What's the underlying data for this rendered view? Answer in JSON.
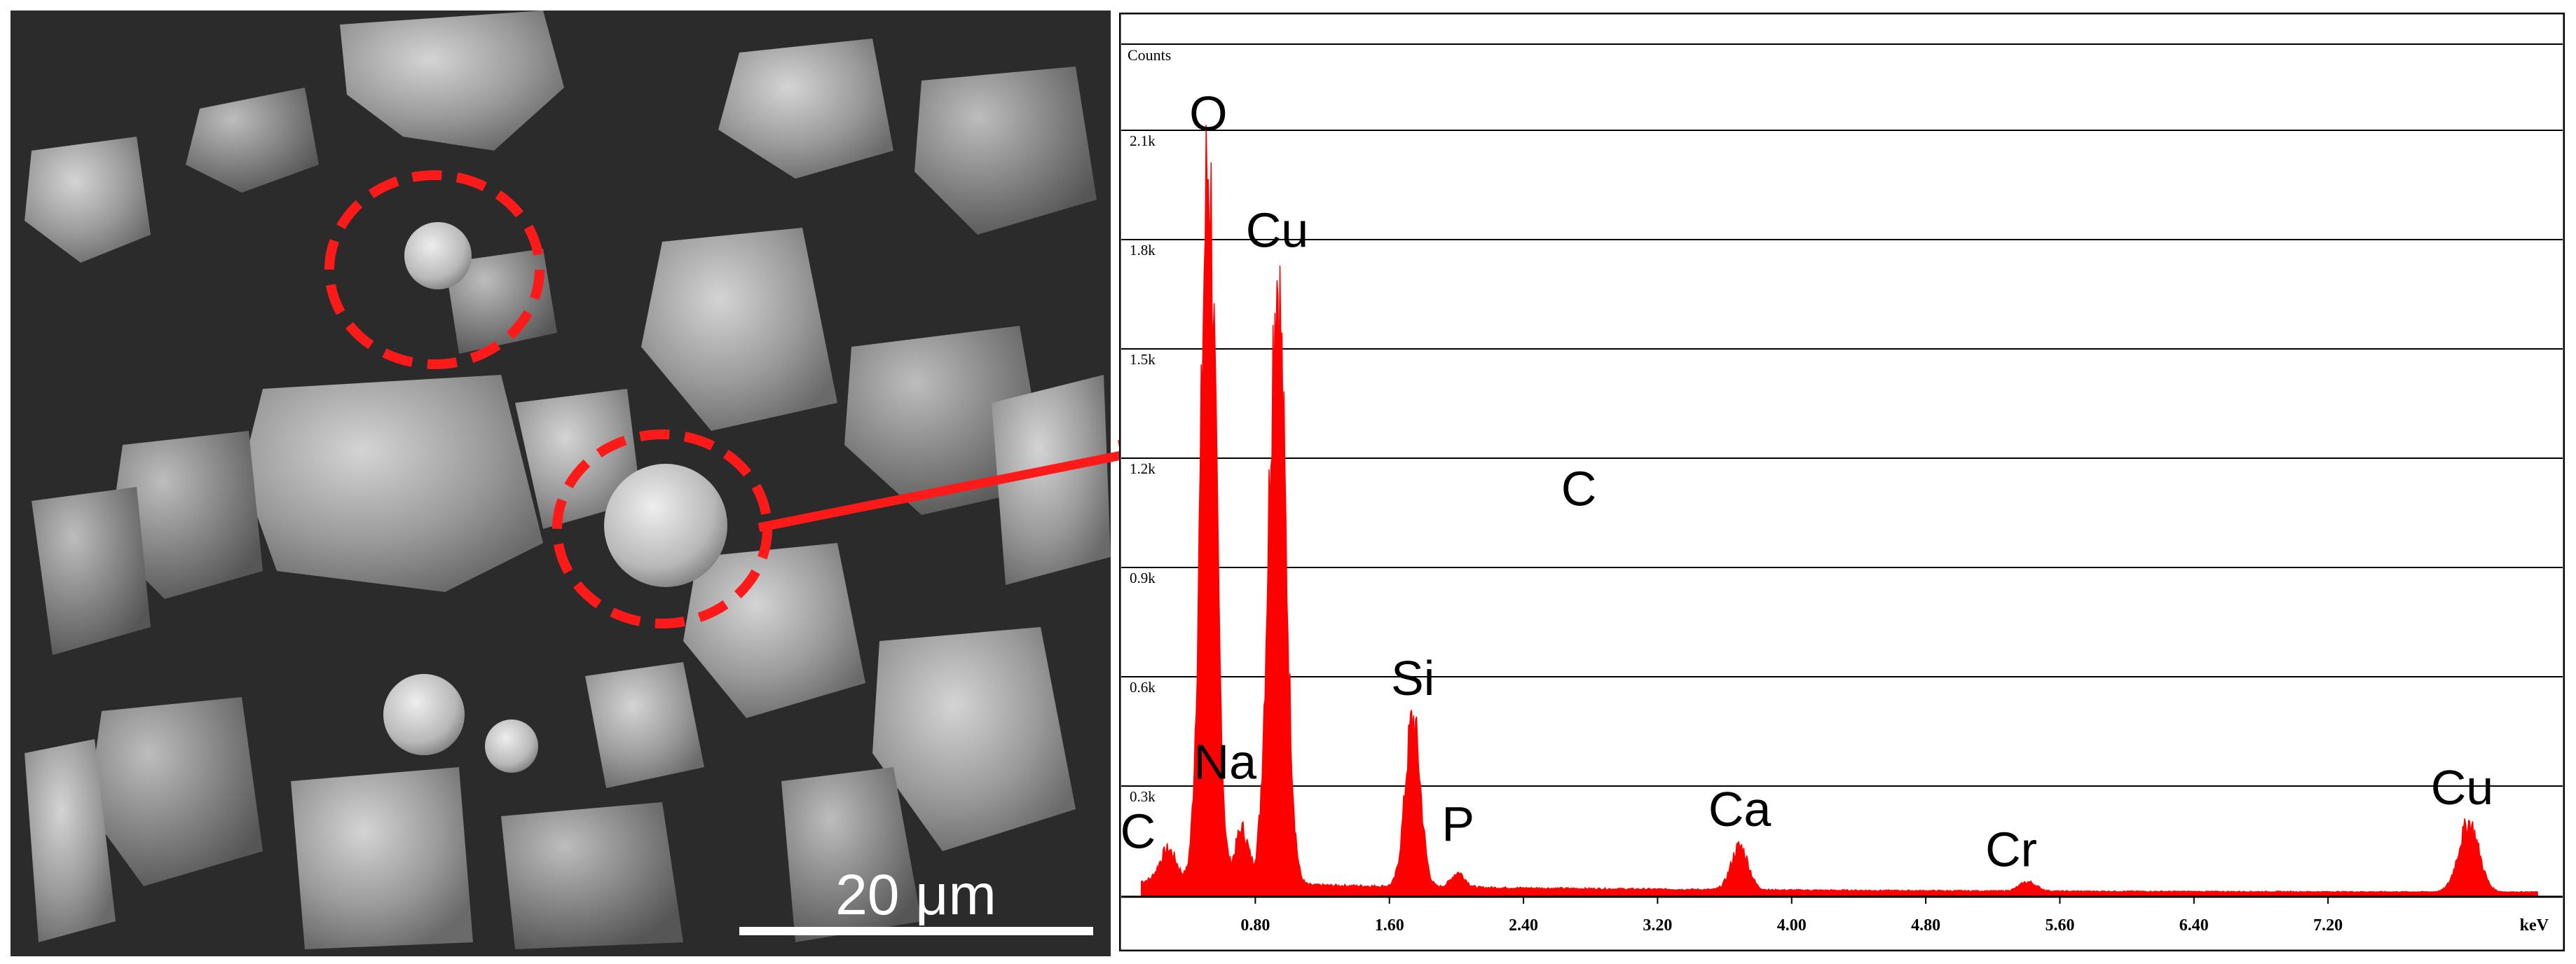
{
  "sem_panel": {
    "scale_bar_label": "20 μm",
    "highlighted_particles": 2,
    "marker_color": "#ff1a1a"
  },
  "chart_data": {
    "type": "area",
    "title": "",
    "ylabel": "Counts",
    "xlabel": "keV",
    "xlim": [
      0.0,
      8.6
    ],
    "ylim": [
      0,
      2.25
    ],
    "y_unit": "k counts",
    "xticks": [
      0.8,
      1.6,
      2.4,
      3.2,
      4.0,
      4.8,
      5.6,
      6.4,
      7.2
    ],
    "xtick_labels": [
      "0.80",
      "1.60",
      "2.40",
      "3.20",
      "4.00",
      "4.80",
      "5.60",
      "6.40",
      "7.20"
    ],
    "yticks": [
      0.3,
      0.6,
      0.9,
      1.2,
      1.5,
      1.8,
      2.1
    ],
    "ytick_labels": [
      "0.3k",
      "0.6k",
      "0.9k",
      "1.2k",
      "1.5k",
      "1.8k",
      "2.1k"
    ],
    "grid": true,
    "series_color": "#ff0000",
    "background_level": 0.03,
    "peaks": [
      {
        "element": "C",
        "energy": 0.28,
        "counts": 0.09,
        "width": 0.05
      },
      {
        "element": "O",
        "energy": 0.52,
        "counts": 1.97,
        "width": 0.045
      },
      {
        "element": "Na",
        "energy": 0.72,
        "counts": 0.15,
        "width": 0.04
      },
      {
        "element": "Cu",
        "energy": 0.93,
        "counts": 1.67,
        "width": 0.05
      },
      {
        "element": "Si",
        "energy": 1.74,
        "counts": 0.46,
        "width": 0.045
      },
      {
        "element": "P",
        "energy": 2.01,
        "counts": 0.04,
        "width": 0.04
      },
      {
        "element": "Ca",
        "energy": 3.69,
        "counts": 0.12,
        "width": 0.05
      },
      {
        "element": "Cr",
        "energy": 5.41,
        "counts": 0.025,
        "width": 0.05
      },
      {
        "element": "Cu",
        "energy": 8.04,
        "counts": 0.19,
        "width": 0.06
      }
    ],
    "annotations": [
      {
        "text": "O",
        "energy": 0.52,
        "counts": 2.1
      },
      {
        "text": "Cu",
        "energy": 0.93,
        "counts": 1.78
      },
      {
        "text": "C",
        "energy": 2.73,
        "counts": 1.07
      },
      {
        "text": "Si",
        "energy": 1.74,
        "counts": 0.55
      },
      {
        "text": "Na",
        "energy": 0.62,
        "counts": 0.32
      },
      {
        "text": "P",
        "energy": 2.01,
        "counts": 0.15
      },
      {
        "text": "Ca",
        "energy": 3.69,
        "counts": 0.19
      },
      {
        "text": "Cr",
        "energy": 5.31,
        "counts": 0.08
      },
      {
        "text": "C",
        "energy": 0.1,
        "counts": 0.13
      },
      {
        "text": "Cu",
        "energy": 8.0,
        "counts": 0.25
      }
    ]
  }
}
